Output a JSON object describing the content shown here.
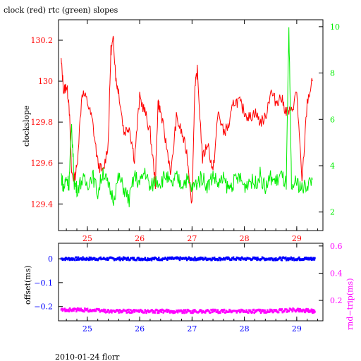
{
  "colors": {
    "clock": "#ff0000",
    "rtc": "#00ee00",
    "offset": "#0000ff",
    "rnd_trip": "#ff00ff",
    "axis": "#000000"
  },
  "footer": {
    "text": "2010-01-24 florr"
  },
  "chart_data": [
    {
      "type": "line",
      "title": "clock (red) rtc (green) slopes",
      "ylabel": "clockslope",
      "xlim": [
        24.45,
        29.5
      ],
      "ylim": [
        129.27,
        130.3
      ],
      "y2lim": [
        1.2,
        10.3
      ],
      "xticks": [
        "25",
        "26",
        "27",
        "28",
        "29"
      ],
      "yticks": [
        "129.4",
        "129.6",
        "129.8",
        "130",
        "130.2"
      ],
      "y2ticks": [
        "2",
        "4",
        "6",
        "8",
        "10"
      ],
      "series": [
        {
          "name": "clock",
          "axis": "left",
          "x": [
            24.5,
            24.55,
            24.6,
            24.65,
            24.7,
            24.75,
            24.8,
            24.9,
            25.0,
            25.1,
            25.2,
            25.3,
            25.4,
            25.45,
            25.5,
            25.55,
            25.6,
            25.7,
            25.8,
            25.9,
            26.0,
            26.1,
            26.2,
            26.3,
            26.35,
            26.4,
            26.5,
            26.6,
            26.7,
            26.8,
            26.9,
            27.0,
            27.05,
            27.1,
            27.2,
            27.3,
            27.4,
            27.5,
            27.6,
            27.7,
            27.8,
            27.9,
            28.0,
            28.1,
            28.2,
            28.3,
            28.4,
            28.5,
            28.6,
            28.7,
            28.8,
            28.9,
            29.0,
            29.1,
            29.2,
            29.3
          ],
          "y": [
            130.1,
            129.95,
            129.98,
            129.9,
            129.55,
            129.52,
            129.58,
            129.95,
            129.9,
            129.8,
            129.6,
            129.55,
            129.7,
            130.15,
            130.2,
            130.0,
            129.95,
            129.75,
            129.78,
            129.62,
            129.92,
            129.85,
            129.75,
            129.5,
            129.9,
            129.85,
            129.7,
            129.55,
            129.82,
            129.75,
            129.65,
            129.4,
            129.95,
            130.05,
            129.62,
            129.7,
            129.55,
            129.85,
            129.75,
            129.78,
            129.9,
            129.9,
            129.85,
            129.82,
            129.85,
            129.8,
            129.82,
            129.95,
            129.9,
            129.92,
            129.85,
            129.85,
            129.95,
            129.5,
            129.9,
            130.0
          ]
        },
        {
          "name": "rtc",
          "axis": "right",
          "x": [
            24.5,
            24.55,
            24.6,
            24.65,
            24.7,
            24.75,
            24.8,
            24.9,
            25.0,
            25.1,
            25.2,
            25.3,
            25.4,
            25.5,
            25.6,
            25.7,
            25.8,
            25.9,
            26.0,
            26.1,
            26.2,
            26.3,
            26.4,
            26.5,
            26.6,
            26.7,
            26.8,
            26.9,
            27.0,
            27.1,
            27.2,
            27.3,
            27.4,
            27.5,
            27.6,
            27.7,
            27.8,
            27.9,
            28.0,
            28.1,
            28.2,
            28.3,
            28.4,
            28.5,
            28.6,
            28.7,
            28.8,
            28.85,
            28.9,
            29.0,
            29.1,
            29.2,
            29.3
          ],
          "y": [
            3.6,
            3.0,
            3.5,
            3.2,
            5.7,
            3.3,
            3.0,
            3.4,
            3.2,
            3.6,
            2.8,
            3.8,
            3.1,
            2.6,
            3.5,
            3.0,
            2.5,
            3.6,
            3.2,
            3.8,
            3.0,
            3.4,
            3.3,
            3.6,
            3.1,
            3.5,
            3.2,
            3.4,
            3.0,
            3.3,
            3.5,
            3.1,
            3.6,
            3.2,
            3.4,
            3.0,
            3.3,
            3.5,
            3.1,
            3.4,
            3.2,
            3.6,
            3.0,
            3.5,
            3.3,
            3.6,
            3.2,
            9.8,
            3.1,
            3.3,
            3.0,
            3.2,
            3.4
          ]
        }
      ]
    },
    {
      "type": "scatter",
      "ylabel": "offset(ms)",
      "y2label": "rnd−trip(ms)",
      "xlim": [
        24.45,
        29.5
      ],
      "ylim": [
        -0.26,
        0.065
      ],
      "y2lim": [
        0.05,
        0.62
      ],
      "xticks": [
        "25",
        "26",
        "27",
        "28",
        "29"
      ],
      "yticks": [
        "0",
        "−0.1",
        "−0.2"
      ],
      "y2ticks": [
        "0.2",
        "0.4",
        "0.6"
      ],
      "series": [
        {
          "name": "offset",
          "axis": "left",
          "x": [
            24.5,
            25.0,
            25.5,
            26.0,
            26.5,
            27.0,
            27.5,
            28.0,
            28.5,
            29.0,
            29.35
          ],
          "y": [
            0.0,
            0.0,
            0.0,
            0.0,
            0.0,
            0.0,
            0.0,
            0.0,
            0.0,
            0.0,
            0.0
          ]
        },
        {
          "name": "rnd-trip",
          "axis": "right",
          "x": [
            24.5,
            25.0,
            25.5,
            26.0,
            26.5,
            27.0,
            27.5,
            28.0,
            28.5,
            29.0,
            29.35
          ],
          "y": [
            0.13,
            0.13,
            0.12,
            0.12,
            0.12,
            0.12,
            0.12,
            0.12,
            0.12,
            0.13,
            0.12
          ]
        }
      ]
    }
  ]
}
